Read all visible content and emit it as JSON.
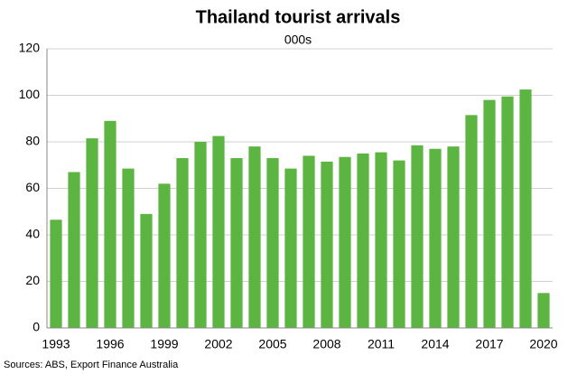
{
  "chart_data": {
    "type": "bar",
    "title": "Thailand tourist arrivals",
    "subtitle": "000s",
    "source": "Sources: ABS, Export Finance Australia",
    "categories": [
      1993,
      null,
      null,
      1996,
      null,
      null,
      1999,
      null,
      null,
      2002,
      null,
      null,
      2005,
      null,
      null,
      2008,
      null,
      null,
      2011,
      null,
      null,
      2014,
      null,
      null,
      2017,
      null,
      null,
      2020
    ],
    "values": [
      46.5,
      67,
      81.5,
      89,
      68.5,
      49,
      62,
      73,
      80,
      82.5,
      73,
      78,
      73,
      68.5,
      74,
      71.5,
      73.5,
      75,
      75.5,
      72,
      78.5,
      77,
      78,
      91.5,
      98,
      99.5,
      102.5,
      15
    ],
    "color": "#5bb540",
    "ylim": [
      0,
      120
    ],
    "yticks": [
      0,
      20,
      40,
      60,
      80,
      100,
      120
    ],
    "grid": true
  }
}
